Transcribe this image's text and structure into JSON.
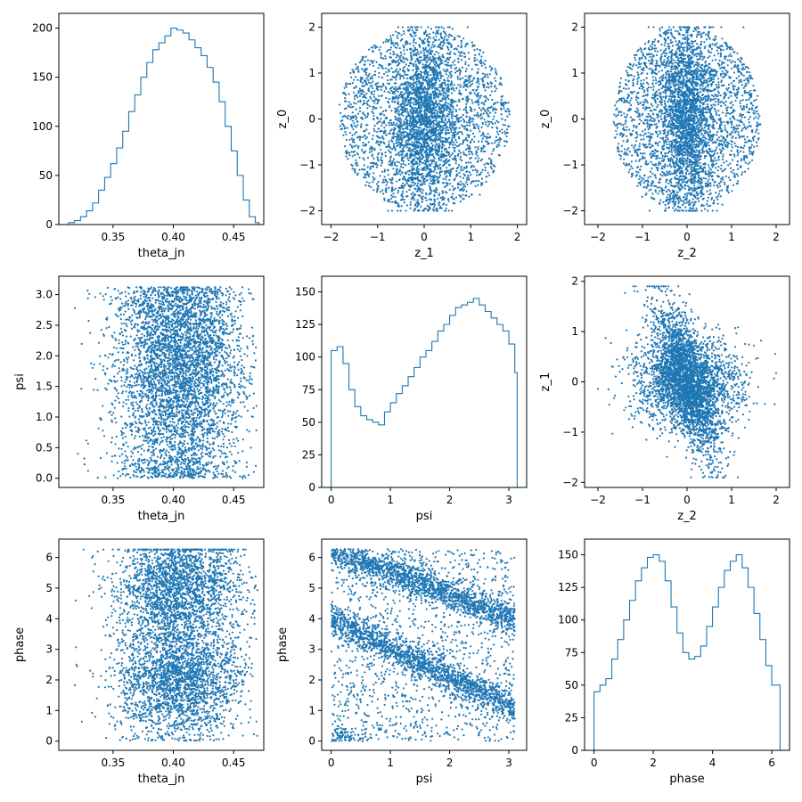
{
  "figure": {
    "background": "#ffffff",
    "series_color": "#1f77b4"
  },
  "chart_data": [
    {
      "type": "histogram",
      "xlabel": "theta_jn",
      "ylabel": "",
      "xlim": [
        0.305,
        0.475
      ],
      "ylim": [
        0,
        215
      ],
      "xticks": [
        0.35,
        0.4,
        0.45
      ],
      "xtick_labels": [
        "0.35",
        "0.40",
        "0.45"
      ],
      "yticks": [
        0,
        50,
        100,
        150,
        200
      ],
      "ytick_labels": [
        "0",
        "50",
        "100",
        "150",
        "200"
      ],
      "bin_edges": [
        0.313,
        0.318,
        0.323,
        0.328,
        0.333,
        0.338,
        0.343,
        0.348,
        0.353,
        0.358,
        0.363,
        0.368,
        0.373,
        0.378,
        0.383,
        0.388,
        0.393,
        0.398,
        0.403,
        0.408,
        0.413,
        0.418,
        0.423,
        0.428,
        0.433,
        0.438,
        0.443,
        0.448,
        0.453,
        0.458,
        0.463,
        0.468,
        0.471
      ],
      "counts": [
        2,
        4,
        8,
        14,
        22,
        35,
        48,
        62,
        78,
        95,
        115,
        132,
        150,
        165,
        178,
        185,
        192,
        200,
        198,
        195,
        188,
        180,
        172,
        160,
        145,
        125,
        100,
        75,
        50,
        25,
        8,
        2
      ]
    },
    {
      "type": "scatter",
      "xlabel": "z_1",
      "ylabel": "z_0",
      "xlim": [
        -2.2,
        2.2
      ],
      "ylim": [
        -2.3,
        2.3
      ],
      "xticks": [
        -2,
        -1,
        0,
        1,
        2
      ],
      "xtick_labels": [
        "−2",
        "−1",
        "0",
        "1",
        "2"
      ],
      "yticks": [
        -2,
        -1,
        0,
        1,
        2
      ],
      "ytick_labels": [
        "−2",
        "−1",
        "0",
        "1",
        "2"
      ],
      "n_points": 4000
    },
    {
      "type": "scatter",
      "xlabel": "z_2",
      "ylabel": "z_0",
      "xlim": [
        -2.3,
        2.3
      ],
      "ylim": [
        -2.3,
        2.3
      ],
      "xticks": [
        -2,
        -1,
        0,
        1,
        2
      ],
      "xtick_labels": [
        "−2",
        "−1",
        "0",
        "1",
        "2"
      ],
      "yticks": [
        -2,
        -1,
        0,
        1,
        2
      ],
      "ytick_labels": [
        "−2",
        "−1",
        "0",
        "1",
        "2"
      ],
      "n_points": 4000
    },
    {
      "type": "scatter",
      "xlabel": "theta_jn",
      "ylabel": "psi",
      "xlim": [
        0.305,
        0.475
      ],
      "ylim": [
        -0.15,
        3.3
      ],
      "xticks": [
        0.35,
        0.4,
        0.45
      ],
      "xtick_labels": [
        "0.35",
        "0.40",
        "0.45"
      ],
      "yticks": [
        0.0,
        0.5,
        1.0,
        1.5,
        2.0,
        2.5,
        3.0
      ],
      "ytick_labels": [
        "0.0",
        "0.5",
        "1.0",
        "1.5",
        "2.0",
        "2.5",
        "3.0"
      ],
      "n_points": 4500
    },
    {
      "type": "histogram",
      "xlabel": "psi",
      "ylabel": "",
      "xlim": [
        -0.16,
        3.3
      ],
      "ylim": [
        0,
        162
      ],
      "xticks": [
        0,
        1,
        2,
        3
      ],
      "xtick_labels": [
        "0",
        "1",
        "2",
        "3"
      ],
      "yticks": [
        0,
        25,
        50,
        75,
        100,
        125,
        150
      ],
      "ytick_labels": [
        "0",
        "25",
        "50",
        "75",
        "100",
        "125",
        "150"
      ],
      "bin_edges": [
        0.0,
        0.1,
        0.2,
        0.3,
        0.4,
        0.5,
        0.6,
        0.7,
        0.8,
        0.9,
        1.0,
        1.1,
        1.2,
        1.3,
        1.4,
        1.5,
        1.6,
        1.7,
        1.8,
        1.9,
        2.0,
        2.1,
        2.2,
        2.3,
        2.4,
        2.5,
        2.6,
        2.7,
        2.8,
        2.9,
        3.0,
        3.1,
        3.14
      ],
      "counts": [
        105,
        108,
        95,
        75,
        62,
        55,
        52,
        50,
        48,
        58,
        65,
        72,
        78,
        85,
        92,
        100,
        105,
        112,
        120,
        125,
        132,
        138,
        140,
        142,
        145,
        140,
        135,
        130,
        125,
        120,
        110,
        88
      ]
    },
    {
      "type": "scatter",
      "xlabel": "z_2",
      "ylabel": "z_1",
      "xlim": [
        -2.3,
        2.3
      ],
      "ylim": [
        -2.1,
        2.1
      ],
      "xticks": [
        -2,
        -1,
        0,
        1,
        2
      ],
      "xtick_labels": [
        "−2",
        "−1",
        "0",
        "1",
        "2"
      ],
      "yticks": [
        -2,
        -1,
        0,
        1,
        2
      ],
      "ytick_labels": [
        "−2",
        "−1",
        "0",
        "1",
        "2"
      ],
      "n_points": 4000
    },
    {
      "type": "scatter",
      "xlabel": "theta_jn",
      "ylabel": "phase",
      "xlim": [
        0.305,
        0.475
      ],
      "ylim": [
        -0.3,
        6.6
      ],
      "xticks": [
        0.35,
        0.4,
        0.45
      ],
      "xtick_labels": [
        "0.35",
        "0.40",
        "0.45"
      ],
      "yticks": [
        0,
        1,
        2,
        3,
        4,
        5,
        6
      ],
      "ytick_labels": [
        "0",
        "1",
        "2",
        "3",
        "4",
        "5",
        "6"
      ],
      "n_points": 4500
    },
    {
      "type": "scatter",
      "xlabel": "psi",
      "ylabel": "phase",
      "xlim": [
        -0.16,
        3.3
      ],
      "ylim": [
        -0.3,
        6.6
      ],
      "xticks": [
        0,
        1,
        2,
        3
      ],
      "xtick_labels": [
        "0",
        "1",
        "2",
        "3"
      ],
      "yticks": [
        0,
        1,
        2,
        3,
        4,
        5,
        6
      ],
      "ytick_labels": [
        "0",
        "1",
        "2",
        "3",
        "4",
        "5",
        "6"
      ],
      "n_points": 4500
    },
    {
      "type": "histogram",
      "xlabel": "phase",
      "ylabel": "",
      "xlim": [
        -0.32,
        6.6
      ],
      "ylim": [
        0,
        162
      ],
      "xticks": [
        0,
        2,
        4,
        6
      ],
      "xtick_labels": [
        "0",
        "2",
        "4",
        "6"
      ],
      "yticks": [
        0,
        25,
        50,
        75,
        100,
        125,
        150
      ],
      "ytick_labels": [
        "0",
        "25",
        "50",
        "75",
        "100",
        "125",
        "150"
      ],
      "bin_edges": [
        0.0,
        0.2,
        0.4,
        0.6,
        0.8,
        1.0,
        1.2,
        1.4,
        1.6,
        1.8,
        2.0,
        2.2,
        2.4,
        2.6,
        2.8,
        3.0,
        3.2,
        3.4,
        3.6,
        3.8,
        4.0,
        4.2,
        4.4,
        4.6,
        4.8,
        5.0,
        5.2,
        5.4,
        5.6,
        5.8,
        6.0,
        6.28
      ],
      "counts": [
        45,
        50,
        55,
        70,
        85,
        100,
        115,
        130,
        140,
        148,
        150,
        145,
        130,
        110,
        90,
        75,
        70,
        72,
        80,
        95,
        110,
        125,
        138,
        145,
        150,
        140,
        125,
        105,
        85,
        65,
        50
      ]
    }
  ]
}
